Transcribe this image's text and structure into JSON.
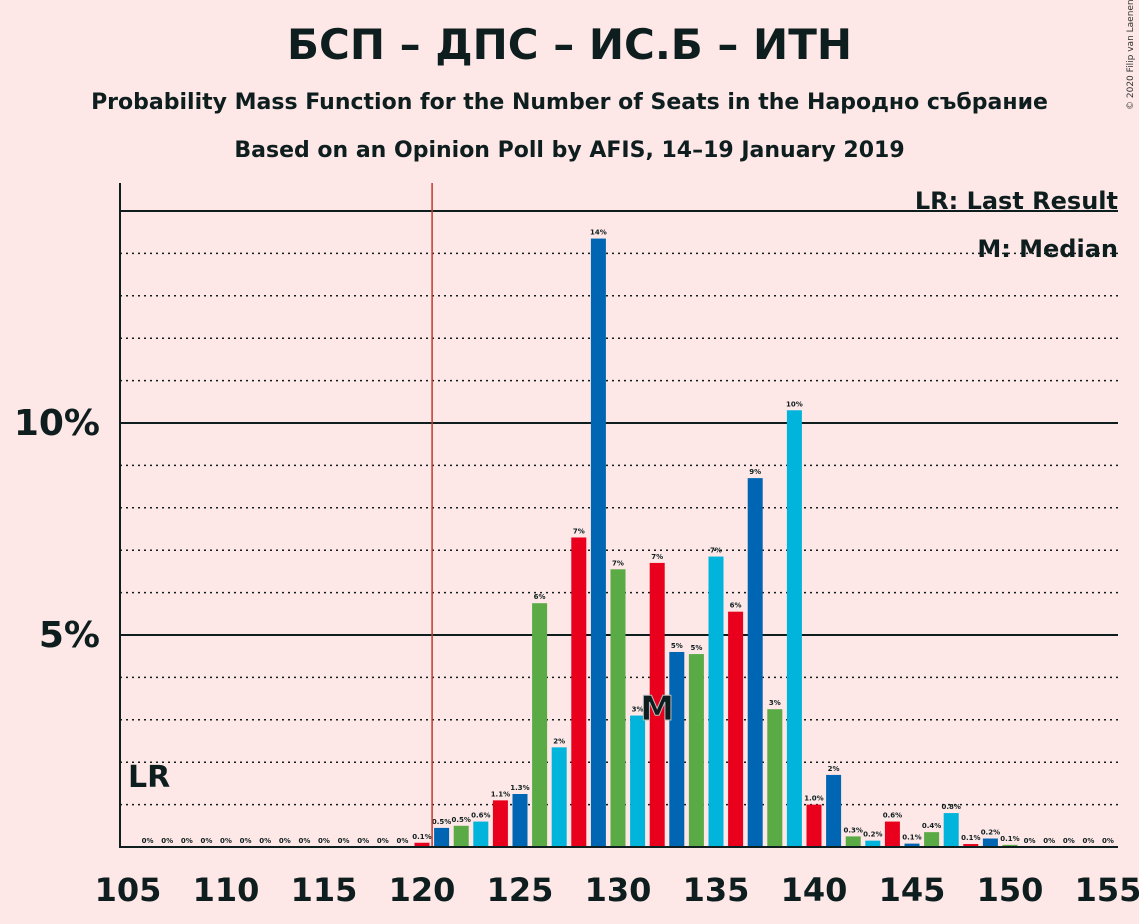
{
  "title": "БСП – ДПС – ИС.Б – ИТН",
  "subtitle1": "Probability Mass Function for the Number of Seats in the Народно събрание",
  "subtitle2": "Based on an Opinion Poll by AFIS, 14–19 January 2019",
  "copyright": "© 2020 Filip van Laenen",
  "legend": {
    "lr": "LR: Last Result",
    "median": "M: Median"
  },
  "lr_marker": "LR",
  "median_marker": "M",
  "colors": {
    "background": "#FDE7E7",
    "blue": "#0066B3",
    "green": "#5AAA46",
    "cyan": "#00B4DC",
    "red": "#E8001C",
    "lr_line": "#C0392B"
  },
  "chart_data": {
    "type": "bar",
    "xlim": [
      105,
      155
    ],
    "ylim": [
      0,
      15.7
    ],
    "x_ticks": [
      "105",
      "110",
      "115",
      "120",
      "125",
      "130",
      "135",
      "140",
      "145",
      "150",
      "155"
    ],
    "y_ticks": [
      {
        "value": 5,
        "label": "5%"
      },
      {
        "value": 10,
        "label": "10%"
      }
    ],
    "grid": true,
    "last_result": 121,
    "median": 132,
    "legend_placement": "top-right",
    "bars": [
      {
        "x": 106,
        "value": 0,
        "label": "0%",
        "color": "red"
      },
      {
        "x": 107,
        "value": 0,
        "label": "0%",
        "color": "red"
      },
      {
        "x": 108,
        "value": 0,
        "label": "0%",
        "color": "red"
      },
      {
        "x": 109,
        "value": 0,
        "label": "0%",
        "color": "red"
      },
      {
        "x": 110,
        "value": 0,
        "label": "0%",
        "color": "red"
      },
      {
        "x": 111,
        "value": 0,
        "label": "0%",
        "color": "red"
      },
      {
        "x": 112,
        "value": 0,
        "label": "0%",
        "color": "red"
      },
      {
        "x": 113,
        "value": 0,
        "label": "0%",
        "color": "red"
      },
      {
        "x": 114,
        "value": 0,
        "label": "0%",
        "color": "red"
      },
      {
        "x": 115,
        "value": 0,
        "label": "0%",
        "color": "red"
      },
      {
        "x": 116,
        "value": 0,
        "label": "0%",
        "color": "red"
      },
      {
        "x": 117,
        "value": 0,
        "label": "0%",
        "color": "red"
      },
      {
        "x": 118,
        "value": 0,
        "label": "0%",
        "color": "red"
      },
      {
        "x": 119,
        "value": 0,
        "label": "0%",
        "color": "red"
      },
      {
        "x": 120,
        "value": 0.1,
        "label": "0.1%",
        "color": "red"
      },
      {
        "x": 121,
        "value": 0.45,
        "label": "0.5%",
        "color": "blue"
      },
      {
        "x": 122,
        "value": 0.5,
        "label": "0.5%",
        "color": "green"
      },
      {
        "x": 123,
        "value": 0.6,
        "label": "0.6%",
        "color": "cyan"
      },
      {
        "x": 124,
        "value": 1.1,
        "label": "1.1%",
        "color": "red"
      },
      {
        "x": 125,
        "value": 1.25,
        "label": "1.3%",
        "color": "blue"
      },
      {
        "x": 126,
        "value": 5.75,
        "label": "6%",
        "color": "green"
      },
      {
        "x": 127,
        "value": 2.35,
        "label": "2%",
        "color": "cyan"
      },
      {
        "x": 128,
        "value": 7.3,
        "label": "7%",
        "color": "red"
      },
      {
        "x": 129,
        "value": 14.35,
        "label": "14%",
        "color": "blue"
      },
      {
        "x": 130,
        "value": 6.55,
        "label": "7%",
        "color": "green"
      },
      {
        "x": 131,
        "value": 3.1,
        "label": "3%",
        "color": "cyan"
      },
      {
        "x": 132,
        "value": 6.7,
        "label": "7%",
        "color": "red"
      },
      {
        "x": 133,
        "value": 4.6,
        "label": "5%",
        "color": "blue"
      },
      {
        "x": 134,
        "value": 4.55,
        "label": "5%",
        "color": "green"
      },
      {
        "x": 135,
        "value": 6.85,
        "label": "7%",
        "color": "cyan"
      },
      {
        "x": 136,
        "value": 5.55,
        "label": "6%",
        "color": "red"
      },
      {
        "x": 137,
        "value": 8.7,
        "label": "9%",
        "color": "blue"
      },
      {
        "x": 138,
        "value": 3.25,
        "label": "3%",
        "color": "green"
      },
      {
        "x": 139,
        "value": 10.3,
        "label": "10%",
        "color": "cyan"
      },
      {
        "x": 140,
        "value": 1.0,
        "label": "1.0%",
        "color": "red"
      },
      {
        "x": 141,
        "value": 1.7,
        "label": "2%",
        "color": "blue"
      },
      {
        "x": 142,
        "value": 0.25,
        "label": "0.3%",
        "color": "green"
      },
      {
        "x": 143,
        "value": 0.15,
        "label": "0.2%",
        "color": "cyan"
      },
      {
        "x": 144,
        "value": 0.6,
        "label": "0.6%",
        "color": "red"
      },
      {
        "x": 145,
        "value": 0.08,
        "label": "0.1%",
        "color": "blue"
      },
      {
        "x": 146,
        "value": 0.35,
        "label": "0.4%",
        "color": "green"
      },
      {
        "x": 147,
        "value": 0.8,
        "label": "0.8%",
        "color": "cyan"
      },
      {
        "x": 148,
        "value": 0.07,
        "label": "0.1%",
        "color": "red"
      },
      {
        "x": 149,
        "value": 0.2,
        "label": "0.2%",
        "color": "blue"
      },
      {
        "x": 150,
        "value": 0.05,
        "label": "0.1%",
        "color": "green"
      },
      {
        "x": 151,
        "value": 0,
        "label": "0%",
        "color": "cyan"
      },
      {
        "x": 152,
        "value": 0,
        "label": "0%",
        "color": "red"
      },
      {
        "x": 153,
        "value": 0,
        "label": "0%",
        "color": "blue"
      },
      {
        "x": 154,
        "value": 0,
        "label": "0%",
        "color": "green"
      },
      {
        "x": 155,
        "value": 0,
        "label": "0%",
        "color": "cyan"
      }
    ]
  }
}
